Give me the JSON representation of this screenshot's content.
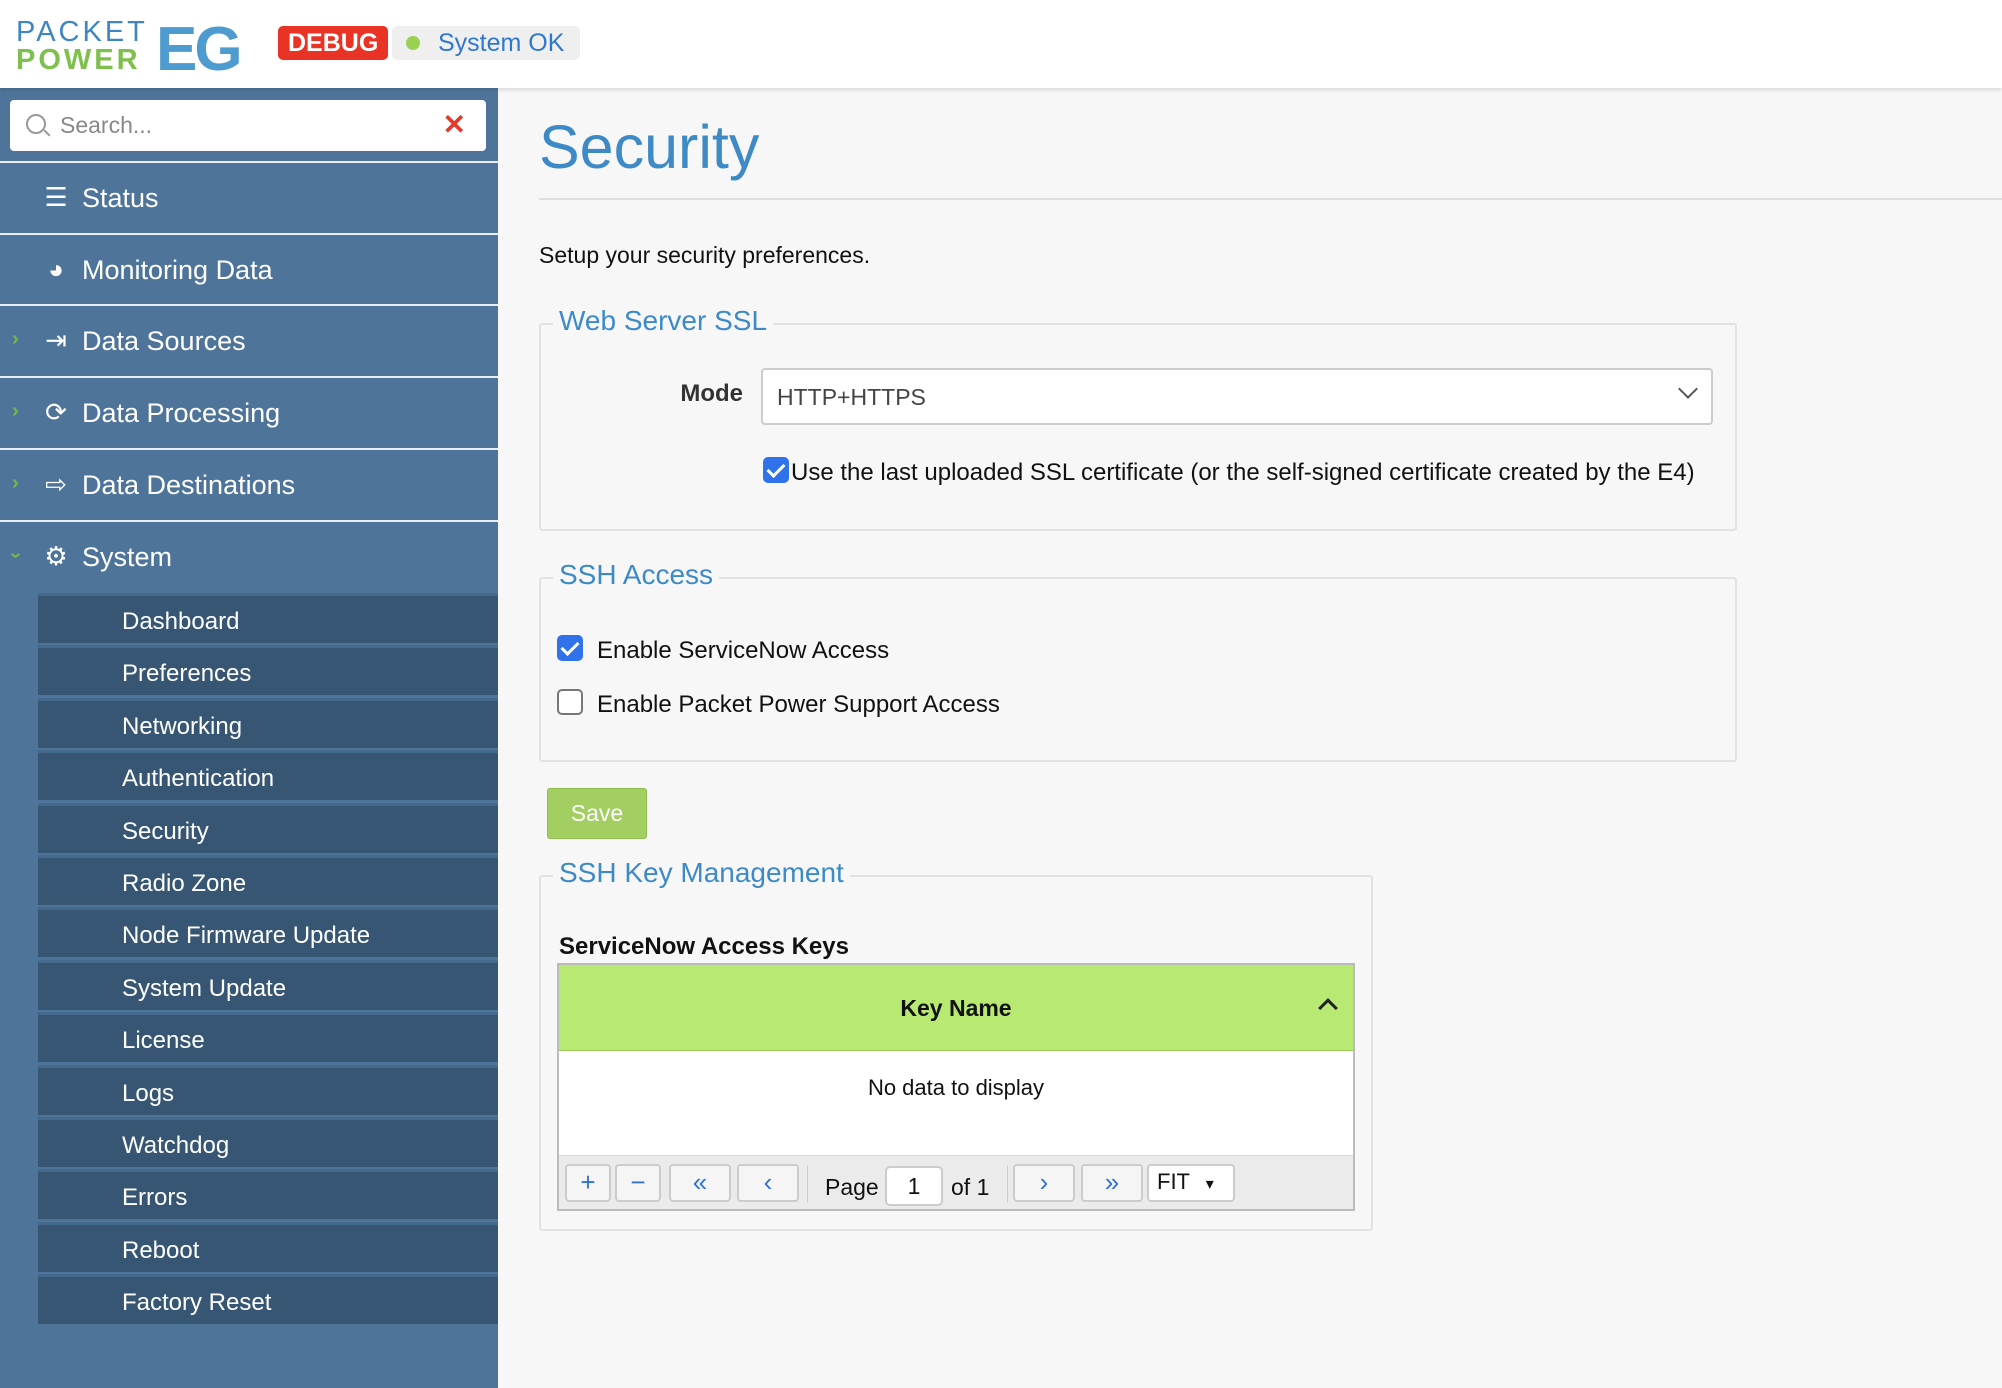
{
  "header": {
    "logo_text": "PACKET POWER EG",
    "logo_line1": "PACKET",
    "logo_line2": "POWER",
    "logo_suffix": "EG",
    "debug_badge": "DEBUG",
    "status_text": "System OK",
    "status_color": "#99d151"
  },
  "sidebar": {
    "search_placeholder": "Search...",
    "items": [
      {
        "label": "Status",
        "icon": "list-icon"
      },
      {
        "label": "Monitoring Data",
        "icon": "dashboard-gauge-icon"
      },
      {
        "label": "Data Sources",
        "icon": "sign-in-icon",
        "expandable": true
      },
      {
        "label": "Data Processing",
        "icon": "refresh-icon",
        "expandable": true
      },
      {
        "label": "Data Destinations",
        "icon": "sign-out-icon",
        "expandable": true
      },
      {
        "label": "System",
        "icon": "gear-icon",
        "expanded": true
      }
    ],
    "system_items": [
      "Dashboard",
      "Preferences",
      "Networking",
      "Authentication",
      "Security",
      "Radio Zone",
      "Node Firmware Update",
      "System Update",
      "License",
      "Logs",
      "Watchdog",
      "Errors",
      "Reboot",
      "Factory Reset"
    ]
  },
  "main": {
    "title": "Security",
    "intro": "Setup your security preferences.",
    "ssl": {
      "legend": "Web Server SSL",
      "mode_label": "Mode",
      "mode_value": "HTTP+HTTPS",
      "cert_label": "Use the last uploaded SSL certificate (or the self-signed certificate created by the E4)",
      "cert_checked": true
    },
    "ssh": {
      "legend": "SSH Access",
      "servicenow_label": "Enable ServiceNow Access",
      "servicenow_checked": true,
      "support_label": "Enable Packet Power Support Access",
      "support_checked": false
    },
    "save_label": "Save",
    "keys": {
      "legend": "SSH Key Management",
      "subtitle": "ServiceNow Access Keys",
      "column": "Key Name",
      "empty": "No data to display",
      "page_label": "Page",
      "page": "1",
      "of_label": "of 1",
      "page_size": "FIT"
    }
  },
  "colors": {
    "sidebar": "#4e7499",
    "submenu": "#375673",
    "accent": "#3d8ac6",
    "grid_header": "#b8e972",
    "save": "#a3cf62",
    "debug": "#e83325"
  }
}
